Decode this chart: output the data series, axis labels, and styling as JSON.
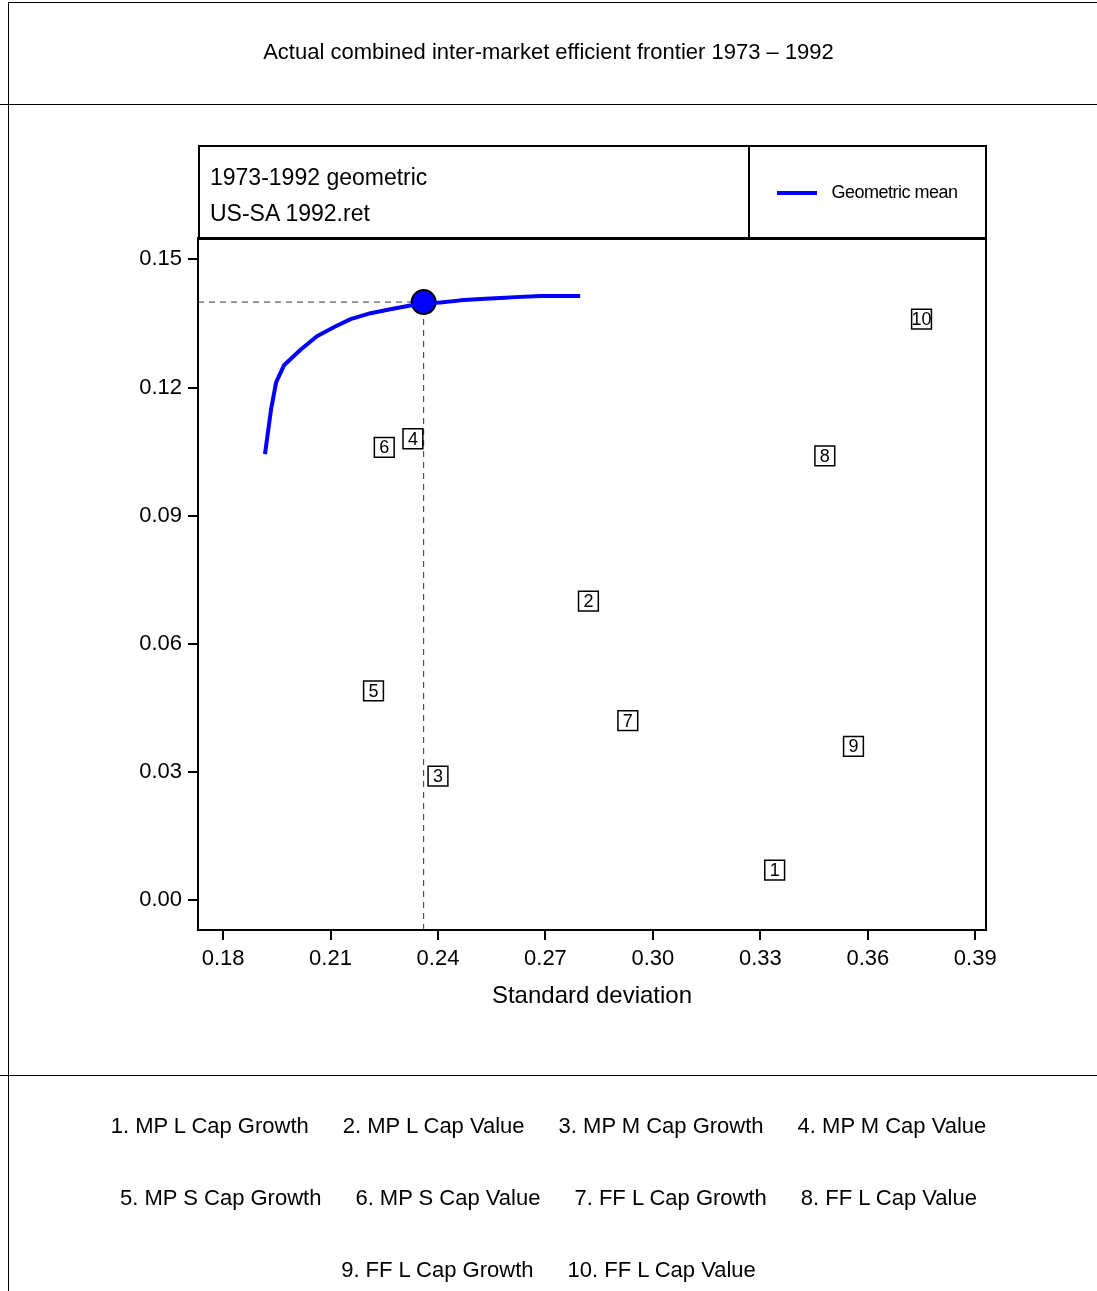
{
  "chart_data": {
    "type": "scatter",
    "title": "Actual combined inter-market efficient frontier 1973 – 1992",
    "xlabel": "Standard deviation",
    "annotations": [
      "1973-1992 geometric",
      "US-SA 1992.ret",
      "1. MP L Cap Growth",
      "2. MP L Cap Value",
      "3. MP M Cap Growth",
      "4. MP M Cap Value",
      "5. MP S Cap Growth",
      "6. MP S Cap Value",
      "7. FF L Cap Growth",
      "8. FF L Cap Value",
      "9. FF L Cap Growth",
      "10. FF L Cap Value",
      {
        "text": "1",
        "x": 0.334,
        "y": 0.007
      },
      {
        "text": "2",
        "x": 0.282,
        "y": 0.07
      },
      {
        "text": "3",
        "x": 0.24,
        "y": 0.029
      },
      {
        "text": "4",
        "x": 0.233,
        "y": 0.108
      },
      {
        "text": "5",
        "x": 0.222,
        "y": 0.049
      },
      {
        "text": "6",
        "x": 0.225,
        "y": 0.106
      },
      {
        "text": "7",
        "x": 0.293,
        "y": 0.042
      },
      {
        "text": "8",
        "x": 0.348,
        "y": 0.104
      },
      {
        "text": "9",
        "x": 0.356,
        "y": 0.036
      },
      {
        "text": "10",
        "x": 0.375,
        "y": 0.136
      }
    ],
    "xlim": [
      0.173,
      0.393
    ],
    "ylim": [
      -0.007,
      0.155
    ],
    "xticks": [
      0.18,
      0.21,
      0.24,
      0.27,
      {
        "value": 0.3,
        "label": "0.30"
      },
      0.33,
      0.36,
      0.39
    ],
    "yticks": [
      {
        "value": 0,
        "label": "0.00"
      },
      0.03,
      0.06,
      0.09,
      0.12,
      0.15
    ],
    "legend": "top right",
    "ref_lines": [
      {
        "axis": "x",
        "value": 0.236,
        "color": "#333333",
        "line_style": "dashed"
      },
      {
        "axis": "y",
        "value": 0.14,
        "color": "#333333",
        "line_style": "dashed"
      }
    ],
    "series": [
      {
        "name": "Geometric mean",
        "type": "line",
        "color": "#0000ff",
        "marker": "none",
        "line_style": "solid",
        "x": [
          0.1917,
          0.1934,
          0.1948,
          0.197,
          0.2017,
          0.2062,
          0.2109,
          0.2156,
          0.2212,
          0.2267,
          0.2323,
          0.2357,
          0.2407,
          0.2463,
          0.2519,
          0.2602,
          0.2686,
          0.2797
        ],
        "values": [
          0.1044,
          0.1149,
          0.1212,
          0.1252,
          0.1289,
          0.132,
          0.1341,
          0.136,
          0.1374,
          0.1383,
          0.1392,
          0.1397,
          0.1399,
          0.1404,
          0.1407,
          0.1411,
          0.1414,
          0.1414
        ]
      },
      {
        "type": "scatter",
        "color": "#0000ff",
        "marker": "circle",
        "x": [
          0.236
        ],
        "values": [
          0.14
        ]
      },
      {
        "type": "scatter",
        "color": "#000000",
        "marker": "square",
        "x": [
          0.334,
          0.282,
          0.24,
          0.233,
          0.222,
          0.225,
          0.293,
          0.348,
          0.356,
          0.375
        ],
        "values": [
          0.007,
          0.07,
          0.029,
          0.108,
          0.049,
          0.106,
          0.042,
          0.104,
          0.036,
          0.136
        ]
      }
    ]
  }
}
